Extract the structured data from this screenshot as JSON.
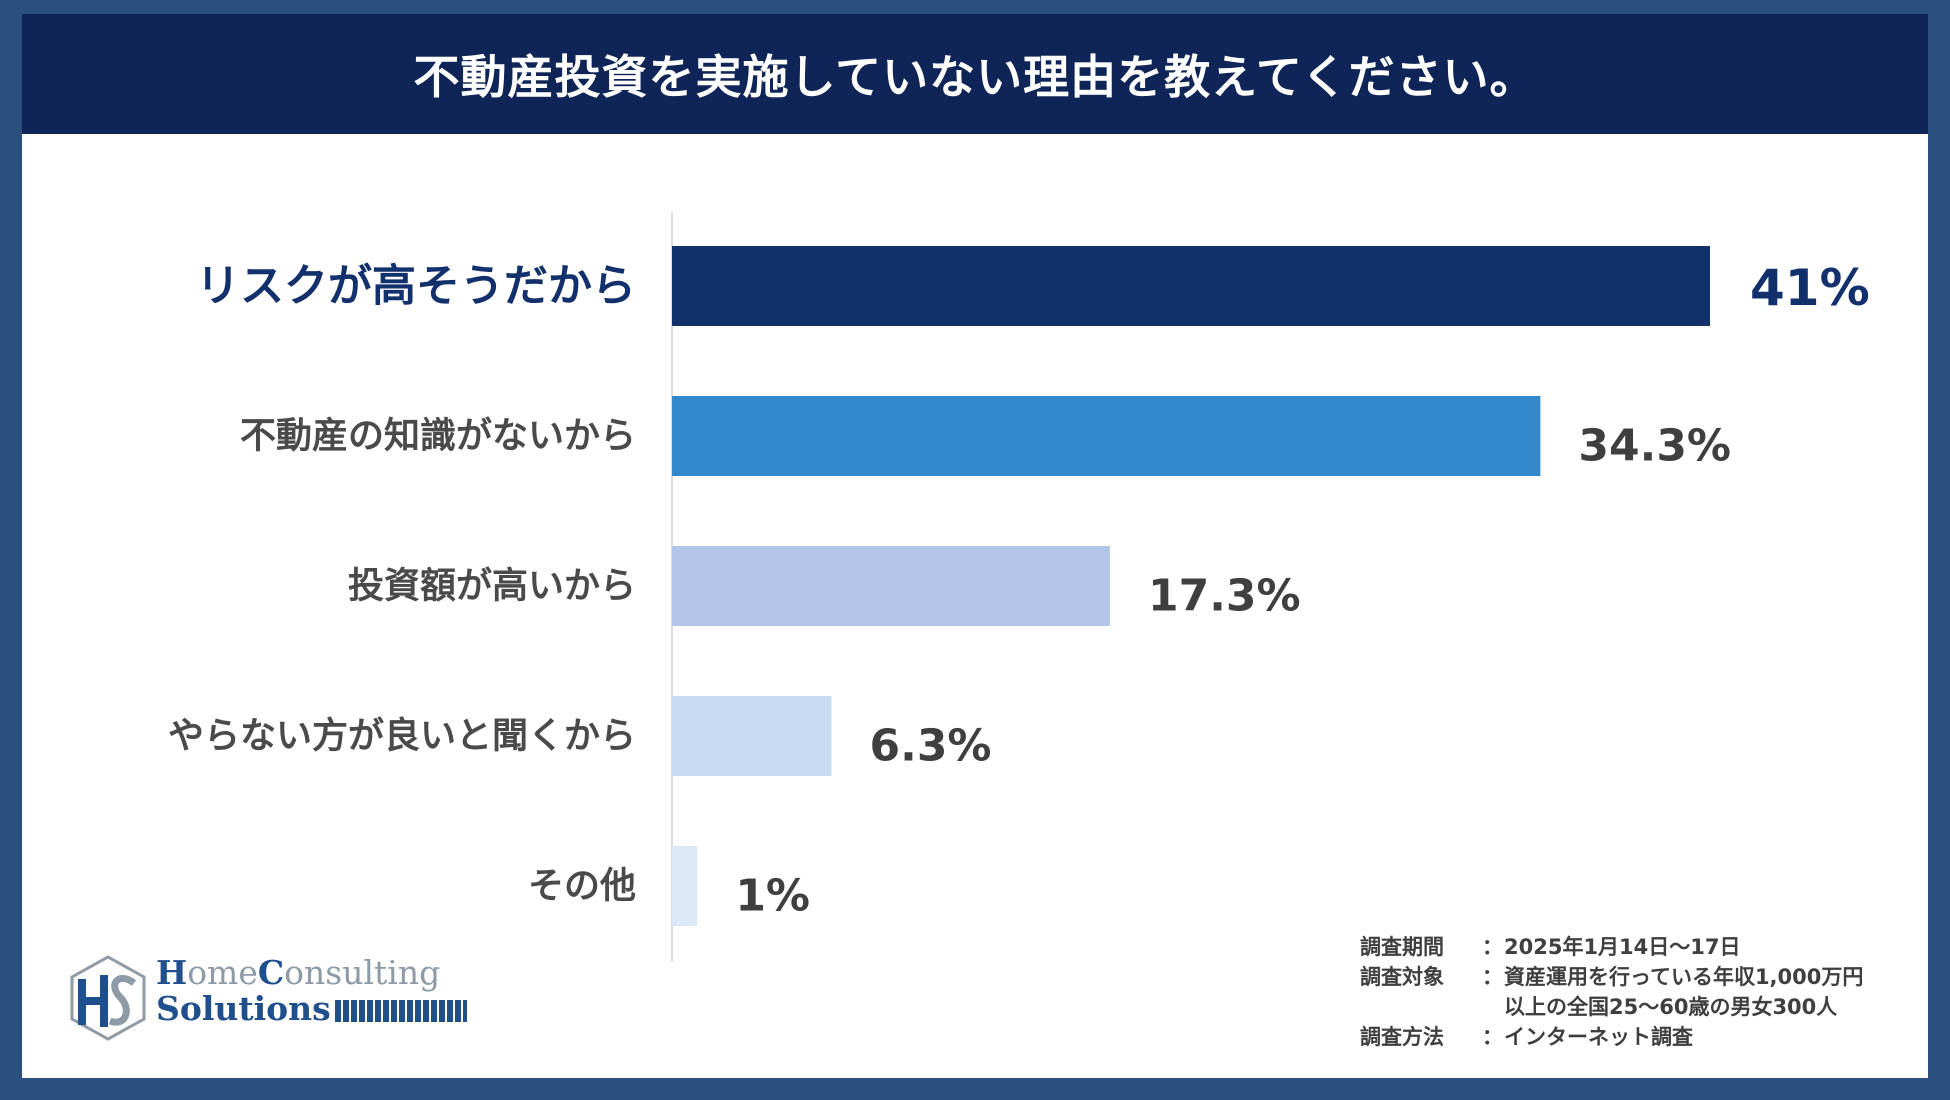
{
  "header": {
    "title": "不動産投資を実施していない理由を教えてください。"
  },
  "colors": {
    "frame": "#2b4f7e",
    "header_bg": "#0f2557",
    "highlight_label": "#12306b",
    "label": "#4a4a4a",
    "value": "#3f3f3f"
  },
  "chart_data": {
    "type": "bar",
    "orientation": "horizontal",
    "categories": [
      "リスクが高そうだから",
      "不動産の知識がないから",
      "投資額が高いから",
      "やらない方が良いと聞くから",
      "その他"
    ],
    "values": [
      41,
      34.3,
      17.3,
      6.3,
      1
    ],
    "value_labels": [
      "41%",
      "34.3%",
      "17.3%",
      "6.3%",
      "1%"
    ],
    "bar_colors": [
      "#12306b",
      "#3488cc",
      "#b1c5e7",
      "#c5dbf1",
      "#dce9f6"
    ],
    "unit": "%",
    "xlim": [
      0,
      41
    ],
    "grid": false
  },
  "notes": {
    "period_key": "調査期間",
    "period_val": "2025年1月14日～17日",
    "target_key": "調査対象",
    "target_val_1": "資産運用を行っている年収1,000万円",
    "target_val_2": "以上の全国25～60歳の男女300人",
    "method_key": "調査方法",
    "method_val": "インターネット調査",
    "colon": "："
  },
  "logo": {
    "h": "H",
    "ome": "ome",
    "c": "C",
    "onsulting": "onsulting",
    "s": "S",
    "olutions": "olutions",
    "icon": "hcs-monogram-icon"
  }
}
